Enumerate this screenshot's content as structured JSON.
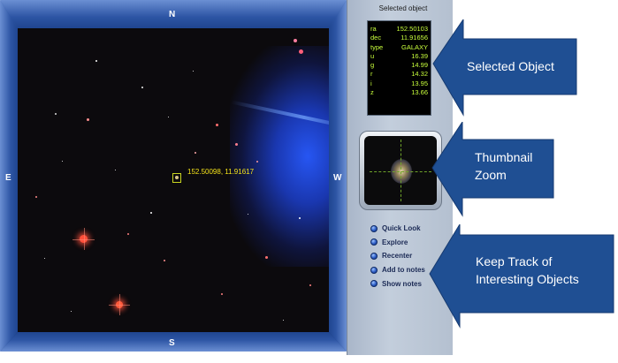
{
  "viewer": {
    "compass": {
      "north": "N",
      "south": "S",
      "east": "E",
      "west": "W"
    },
    "cursor_coordinates": "152.50098, 11.91617"
  },
  "panel": {
    "title": "Selected object",
    "info": [
      {
        "key": "ra",
        "value": "152.50103"
      },
      {
        "key": "dec",
        "value": "11.91656"
      },
      {
        "key": "type",
        "value": "GALAXY"
      },
      {
        "key": "u",
        "value": "16.39"
      },
      {
        "key": "g",
        "value": "14.99"
      },
      {
        "key": "r",
        "value": "14.32"
      },
      {
        "key": "i",
        "value": "13.95"
      },
      {
        "key": "z",
        "value": "13.66"
      }
    ],
    "actions": [
      {
        "label": "Quick Look"
      },
      {
        "label": "Explore"
      },
      {
        "label": "Recenter"
      },
      {
        "label": "Add to notes"
      },
      {
        "label": "Show notes"
      }
    ]
  },
  "callouts": {
    "selected_object": "Selected Object",
    "thumbnail_line1": "Thumbnail",
    "thumbnail_line2": "Zoom",
    "keep_track_line1": "Keep Track of",
    "keep_track_line2": "Interesting Objects"
  },
  "colors": {
    "callout_blue": "#1f4f93",
    "info_text": "#c9ff3c",
    "coordinate_text": "#f4e21a"
  }
}
